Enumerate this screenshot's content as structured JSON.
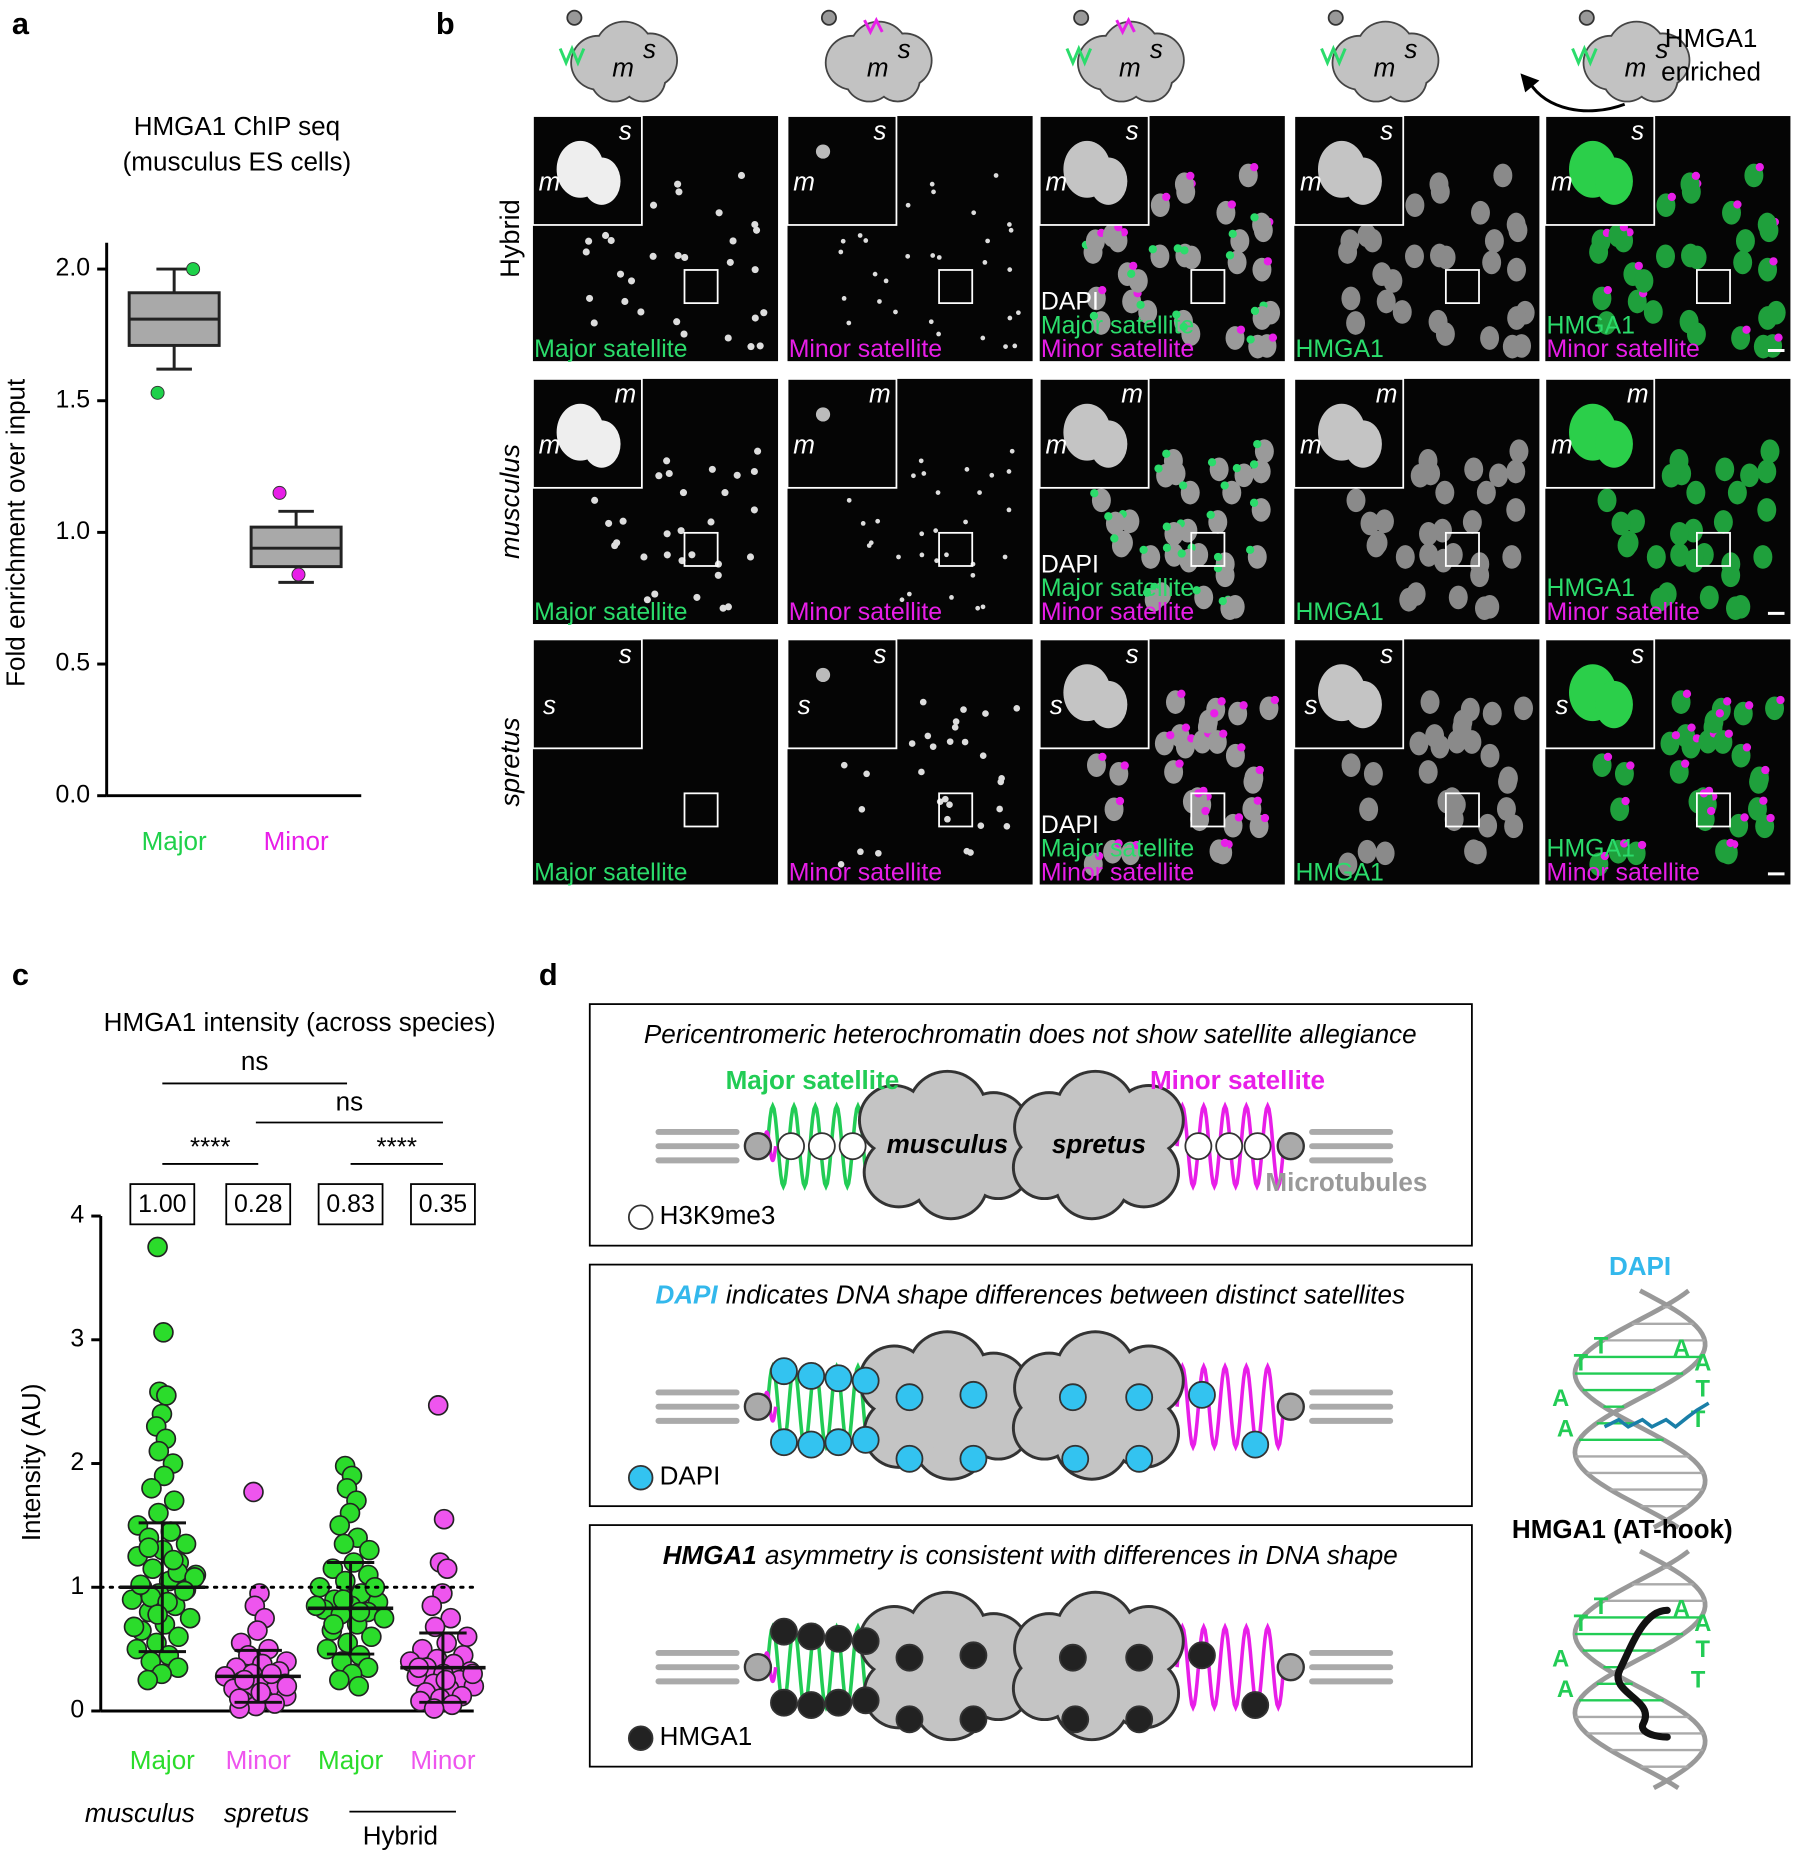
{
  "panel_labels": [
    "a",
    "b",
    "c",
    "d"
  ],
  "chart_data": [
    {
      "type": "box",
      "title": "HMGA1 ChIP seq",
      "subtitle": "(musculus ES cells)",
      "ylabel": "Fold enrichment over input",
      "categories": [
        "Major",
        "Minor"
      ],
      "colors": [
        "#1fd14a",
        "#e81ee8"
      ],
      "boxes": [
        {
          "min": 1.62,
          "q1": 1.71,
          "median": 1.81,
          "q3": 1.91,
          "max": 2.0
        },
        {
          "min": 0.81,
          "q1": 0.87,
          "median": 0.94,
          "q3": 1.02,
          "max": 1.08
        }
      ],
      "points": [
        [
          2.0,
          1.53
        ],
        [
          1.15,
          0.84
        ]
      ],
      "ylim": [
        0,
        2.1
      ],
      "yticks": [
        {
          "value": 0,
          "label": "0.0"
        },
        {
          "value": 0.5,
          "label": "0.5"
        },
        {
          "value": 1,
          "label": "1.0"
        },
        {
          "value": 1.5,
          "label": "1.5"
        },
        {
          "value": 2,
          "label": "2.0"
        }
      ]
    },
    {
      "type": "dot",
      "title": "HMGA1 intensity (across species)",
      "ylabel": "Intensity (AU)",
      "categories": [
        "Major",
        "Minor",
        "Major",
        "Minor"
      ],
      "colors": [
        "#2bdc2b",
        "#ee55ee",
        "#2bdc2b",
        "#ee55ee"
      ],
      "groups": [
        "musculus",
        "spretus",
        "Hybrid"
      ],
      "values": [
        1.0,
        0.28,
        0.83,
        0.35
      ],
      "value_labels": [
        "1.00",
        "0.28",
        "0.83",
        "0.35"
      ],
      "sd": [
        0.52,
        0.21,
        0.37,
        0.28
      ],
      "significance": [
        "ns",
        "ns",
        "****",
        "****"
      ],
      "reference_line": 1,
      "ylim": [
        0,
        4
      ],
      "yticks": [
        0,
        1,
        2,
        3,
        4
      ],
      "points": [
        [
          3.75,
          3.06,
          2.58,
          2.55,
          2.4,
          2.3,
          2.2,
          2.1,
          2.0,
          1.9,
          1.8,
          1.7,
          1.6,
          1.5,
          1.45,
          1.4,
          1.35,
          1.3,
          1.25,
          1.2,
          1.15,
          1.1,
          1.05,
          1.0,
          0.98,
          0.95,
          0.9,
          0.85,
          0.8,
          0.75,
          0.7,
          0.65,
          0.6,
          0.55,
          0.5,
          0.45,
          0.4,
          0.35,
          0.3,
          0.25,
          1.12,
          0.92,
          1.08,
          0.88,
          1.02,
          0.97,
          0.78,
          0.68,
          1.22,
          1.32
        ],
        [
          1.77,
          0.95,
          0.85,
          0.75,
          0.65,
          0.55,
          0.5,
          0.45,
          0.4,
          0.38,
          0.35,
          0.32,
          0.3,
          0.28,
          0.26,
          0.24,
          0.22,
          0.2,
          0.18,
          0.16,
          0.14,
          0.12,
          0.1,
          0.08,
          0.06,
          0.04,
          0.02,
          0.3,
          0.25,
          0.2,
          0.15,
          0.1
        ],
        [
          1.98,
          1.9,
          1.8,
          1.7,
          1.6,
          1.5,
          1.4,
          1.35,
          1.3,
          1.2,
          1.15,
          1.1,
          1.05,
          1.0,
          0.95,
          0.9,
          0.88,
          0.85,
          0.82,
          0.8,
          0.78,
          0.75,
          0.7,
          0.65,
          0.6,
          0.55,
          0.5,
          0.45,
          0.4,
          0.35,
          0.3,
          0.25,
          0.2,
          0.9,
          0.85,
          0.8,
          0.7,
          1.0
        ],
        [
          2.47,
          1.55,
          1.2,
          1.15,
          0.95,
          0.85,
          0.75,
          0.68,
          0.6,
          0.55,
          0.5,
          0.45,
          0.42,
          0.4,
          0.38,
          0.35,
          0.32,
          0.3,
          0.28,
          0.25,
          0.22,
          0.2,
          0.18,
          0.15,
          0.12,
          0.1,
          0.08,
          0.05,
          0.02,
          0.3,
          0.25,
          0.35
        ]
      ]
    }
  ],
  "panel_b": {
    "enriched_label": [
      "HMGA1",
      "enriched"
    ],
    "schematic_letters": [
      "m",
      "s"
    ],
    "columns": [
      {
        "labels": [
          {
            "text": "Major satellite",
            "color": "#2bdc6b"
          }
        ]
      },
      {
        "labels": [
          {
            "text": "Minor satellite",
            "color": "#e81ee8"
          }
        ]
      },
      {
        "labels": [
          {
            "text": "DAPI",
            "color": "#ffffff"
          },
          {
            "text": "Major satellite",
            "color": "#2bdc6b"
          },
          {
            "text": "Minor satellite",
            "color": "#e81ee8"
          }
        ]
      },
      {
        "labels": [
          {
            "text": "HMGA1",
            "color": "#2bdc6b"
          }
        ]
      },
      {
        "labels": [
          {
            "text": "HMGA1",
            "color": "#2bdc6b"
          },
          {
            "text": "Minor satellite",
            "color": "#e81ee8"
          }
        ]
      }
    ],
    "rows": [
      {
        "label": "Hybrid",
        "inset": [
          "s",
          "m"
        ]
      },
      {
        "label": "musculus",
        "inset": [
          "m",
          "m"
        ]
      },
      {
        "label": "spretus",
        "inset": [
          "s",
          "s"
        ]
      }
    ]
  },
  "panel_d": {
    "boxes": [
      {
        "title": "Pericentromeric heterochromatin does not show satellite allegiance",
        "major": "Major satellite",
        "minor": "Minor satellite",
        "left": "musculus",
        "right": "spretus",
        "microtubules": "Microtubules",
        "legend": "H3K9me3"
      },
      {
        "title_lead": "DAPI",
        "title": "indicates DNA shape differences between distinct satellites",
        "legend": "DAPI"
      },
      {
        "title_lead": "HMGA1",
        "title": "asymmetry is consistent with differences in DNA shape",
        "legend": "HMGA1"
      }
    ],
    "dna_labels": [
      "DAPI",
      "HMGA1 (AT-hook)"
    ],
    "bases": [
      "T",
      "T",
      "A",
      "A",
      "A",
      "A",
      "T",
      "T"
    ]
  }
}
